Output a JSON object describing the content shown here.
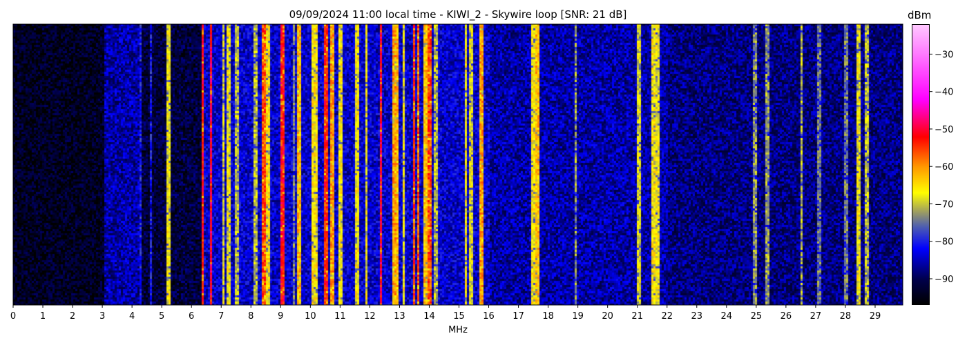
{
  "chart_data": {
    "type": "heatmap",
    "title": "09/09/2024 11:00 local time - KIWI_2 - Skywire loop [SNR: 21 dB]",
    "xlabel": "MHz",
    "ylabel": "",
    "xlim": [
      0,
      29.93
    ],
    "xticks": [
      "0",
      "1",
      "2",
      "3",
      "4",
      "5",
      "6",
      "7",
      "8",
      "9",
      "10",
      "11",
      "12",
      "13",
      "14",
      "15",
      "16",
      "17",
      "18",
      "19",
      "20",
      "21",
      "22",
      "23",
      "24",
      "25",
      "26",
      "27",
      "28",
      "29"
    ],
    "colorbar": {
      "label": "dBm",
      "range": [
        -97,
        -22
      ],
      "ticks": [
        "−30",
        "−40",
        "−50",
        "−60",
        "−70",
        "−80",
        "−90"
      ],
      "tick_values": [
        -30,
        -40,
        -50,
        -60,
        -70,
        -80,
        -90
      ],
      "colormap": [
        {
          "dbm": -97,
          "color": "#000000"
        },
        {
          "dbm": -90,
          "color": "#000050"
        },
        {
          "dbm": -82,
          "color": "#0000ff"
        },
        {
          "dbm": -76,
          "color": "#5060b0"
        },
        {
          "dbm": -72,
          "color": "#a0a060"
        },
        {
          "dbm": -67,
          "color": "#ffff00"
        },
        {
          "dbm": -60,
          "color": "#ff9900"
        },
        {
          "dbm": -52,
          "color": "#ff0000"
        },
        {
          "dbm": -42,
          "color": "#ff00ff"
        },
        {
          "dbm": -22,
          "color": "#ffc8ff"
        }
      ]
    },
    "noise_floor": [
      {
        "mhz_from": 0,
        "mhz_to": 3.0,
        "dbm": -94
      },
      {
        "mhz_from": 3.0,
        "mhz_to": 4.3,
        "dbm": -86
      },
      {
        "mhz_from": 4.3,
        "mhz_to": 6.3,
        "dbm": -92
      },
      {
        "mhz_from": 6.3,
        "mhz_to": 16.0,
        "dbm": -84
      },
      {
        "mhz_from": 16.0,
        "mhz_to": 22.0,
        "dbm": -86
      },
      {
        "mhz_from": 22.0,
        "mhz_to": 29.93,
        "dbm": -88
      }
    ],
    "signals": [
      {
        "mhz": 4.25,
        "dbm": -80
      },
      {
        "mhz": 4.6,
        "dbm": -80
      },
      {
        "mhz": 5.2,
        "dbm": -67
      },
      {
        "mhz": 6.35,
        "dbm": -52
      },
      {
        "mhz": 6.62,
        "dbm": -50
      },
      {
        "mhz": 7.05,
        "dbm": -68
      },
      {
        "mhz": 7.2,
        "dbm": -67
      },
      {
        "mhz": 7.5,
        "dbm": -70
      },
      {
        "mhz": 8.1,
        "dbm": -70
      },
      {
        "mhz": 8.4,
        "dbm": -55
      },
      {
        "mhz": 8.55,
        "dbm": -66
      },
      {
        "mhz": 9.05,
        "dbm": -52
      },
      {
        "mhz": 9.4,
        "dbm": -74
      },
      {
        "mhz": 9.6,
        "dbm": -62
      },
      {
        "mhz": 10.05,
        "dbm": -65
      },
      {
        "mhz": 10.15,
        "dbm": -66
      },
      {
        "mhz": 10.5,
        "dbm": -53
      },
      {
        "mhz": 10.7,
        "dbm": -60
      },
      {
        "mhz": 11.0,
        "dbm": -66
      },
      {
        "mhz": 11.55,
        "dbm": -66
      },
      {
        "mhz": 11.85,
        "dbm": -67
      },
      {
        "mhz": 12.35,
        "dbm": -50
      },
      {
        "mhz": 12.8,
        "dbm": -60
      },
      {
        "mhz": 12.9,
        "dbm": -62
      },
      {
        "mhz": 13.1,
        "dbm": -66
      },
      {
        "mhz": 13.45,
        "dbm": -54
      },
      {
        "mhz": 13.6,
        "dbm": -56
      },
      {
        "mhz": 13.85,
        "dbm": -62
      },
      {
        "mhz": 14.0,
        "dbm": -55
      },
      {
        "mhz": 14.2,
        "dbm": -70
      },
      {
        "mhz": 15.2,
        "dbm": -66
      },
      {
        "mhz": 15.35,
        "dbm": -68
      },
      {
        "mhz": 15.7,
        "dbm": -60
      },
      {
        "mhz": 17.45,
        "dbm": -66
      },
      {
        "mhz": 17.6,
        "dbm": -62
      },
      {
        "mhz": 18.9,
        "dbm": -72
      },
      {
        "mhz": 21.0,
        "dbm": -68
      },
      {
        "mhz": 21.5,
        "dbm": -66
      },
      {
        "mhz": 21.65,
        "dbm": -67
      },
      {
        "mhz": 24.9,
        "dbm": -72
      },
      {
        "mhz": 25.35,
        "dbm": -72
      },
      {
        "mhz": 26.5,
        "dbm": -70
      },
      {
        "mhz": 27.1,
        "dbm": -74
      },
      {
        "mhz": 28.0,
        "dbm": -74
      },
      {
        "mhz": 28.4,
        "dbm": -67
      },
      {
        "mhz": 28.7,
        "dbm": -70
      }
    ],
    "grid": false
  }
}
